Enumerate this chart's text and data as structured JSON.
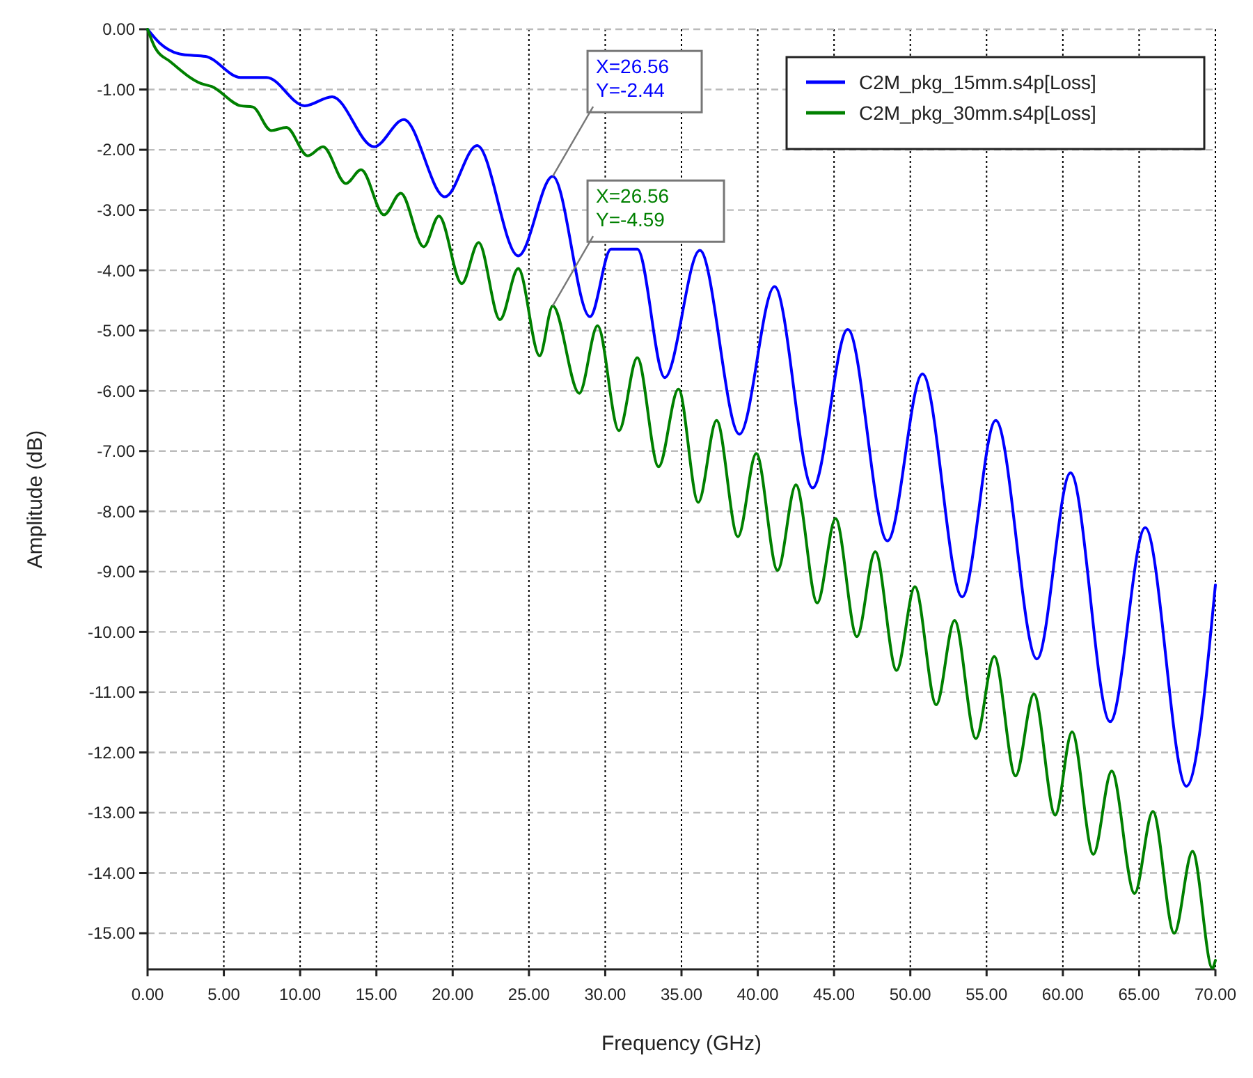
{
  "chart_data": {
    "type": "line",
    "xlabel": "Frequency (GHz)",
    "ylabel": "Amplitude (dB)",
    "xlim": [
      0,
      70
    ],
    "ylim": [
      -15.6,
      0
    ],
    "xticks": [
      {
        "value": 0,
        "label": "0.00"
      },
      {
        "value": 5,
        "label": "5.00"
      },
      {
        "value": 10,
        "label": "10.00"
      },
      {
        "value": 15,
        "label": "15.00"
      },
      {
        "value": 20,
        "label": "20.00"
      },
      {
        "value": 25,
        "label": "25.00"
      },
      {
        "value": 30,
        "label": "30.00"
      },
      {
        "value": 35,
        "label": "35.00"
      },
      {
        "value": 40,
        "label": "40.00"
      },
      {
        "value": 45,
        "label": "45.00"
      },
      {
        "value": 50,
        "label": "50.00"
      },
      {
        "value": 55,
        "label": "55.00"
      },
      {
        "value": 60,
        "label": "60.00"
      },
      {
        "value": 65,
        "label": "65.00"
      },
      {
        "value": 70,
        "label": "70.00"
      }
    ],
    "yticks": [
      {
        "value": 0,
        "label": "0.00"
      },
      {
        "value": -1,
        "label": "-1.00"
      },
      {
        "value": -2,
        "label": "-2.00"
      },
      {
        "value": -3,
        "label": "-3.00"
      },
      {
        "value": -4,
        "label": "-4.00"
      },
      {
        "value": -5,
        "label": "-5.00"
      },
      {
        "value": -6,
        "label": "-6.00"
      },
      {
        "value": -7,
        "label": "-7.00"
      },
      {
        "value": -8,
        "label": "-8.00"
      },
      {
        "value": -9,
        "label": "-9.00"
      },
      {
        "value": -10,
        "label": "-10.00"
      },
      {
        "value": -11,
        "label": "-11.00"
      },
      {
        "value": -12,
        "label": "-12.00"
      },
      {
        "value": -13,
        "label": "-13.00"
      },
      {
        "value": -14,
        "label": "-14.00"
      },
      {
        "value": -15,
        "label": "-15.00"
      }
    ],
    "grid": true,
    "legend": "top right",
    "marker": "none",
    "line_style": "solid",
    "series": [
      {
        "name": "C2M_pkg_15mm.s4p[Loss]",
        "color": "#0000ff",
        "x": [
          0,
          0.8,
          2.3,
          3.8,
          6.1,
          7.8,
          10.3,
          12.1,
          14.85,
          16.8,
          19.5,
          21.6,
          24.3,
          26.56,
          29.0,
          30.38,
          32.11,
          33.9,
          36.2,
          38.8,
          41.1,
          43.6,
          45.9,
          48.5,
          50.8,
          53.4,
          55.6,
          58.3,
          60.5,
          63.1,
          65.4,
          68.1,
          70
        ],
        "values": [
          0,
          -0.23,
          -0.42,
          -0.45,
          -0.8,
          -0.8,
          -1.27,
          -1.12,
          -1.95,
          -1.5,
          -2.78,
          -1.93,
          -3.76,
          -2.44,
          -4.77,
          -3.65,
          -3.65,
          -5.78,
          -3.67,
          -6.72,
          -4.27,
          -7.61,
          -4.98,
          -8.49,
          -5.72,
          -9.42,
          -6.49,
          -10.45,
          -7.36,
          -11.49,
          -8.27,
          -12.56,
          -9.22
        ]
      },
      {
        "name": "C2M_pkg_30mm.s4p[Loss]",
        "color": "#008000",
        "x": [
          0,
          0.5,
          1.5,
          3.5,
          4.2,
          6.1,
          6.9,
          8.1,
          9.1,
          10.5,
          11.5,
          13.0,
          14.0,
          15.5,
          16.6,
          18.1,
          19.1,
          20.6,
          21.7,
          23.1,
          24.3,
          25.7,
          26.56,
          28.3,
          29.5,
          30.9,
          32.1,
          33.5,
          34.8,
          36.1,
          37.3,
          38.7,
          39.9,
          41.3,
          42.5,
          43.9,
          45.1,
          46.5,
          47.7,
          49.1,
          50.3,
          51.7,
          52.9,
          54.3,
          55.5,
          56.9,
          58.1,
          59.5,
          60.6,
          62.0,
          63.2,
          64.7,
          65.9,
          67.3,
          68.5,
          69.8,
          70
        ],
        "values": [
          0,
          -0.31,
          -0.54,
          -0.9,
          -0.95,
          -1.27,
          -1.29,
          -1.68,
          -1.63,
          -2.1,
          -1.95,
          -2.56,
          -2.33,
          -3.08,
          -2.72,
          -3.61,
          -3.1,
          -4.22,
          -3.54,
          -4.82,
          -3.97,
          -5.42,
          -4.59,
          -6.04,
          -4.92,
          -6.66,
          -5.45,
          -7.26,
          -5.97,
          -7.85,
          -6.49,
          -8.42,
          -7.04,
          -8.98,
          -7.56,
          -9.52,
          -8.12,
          -10.08,
          -8.67,
          -10.64,
          -9.25,
          -11.21,
          -9.81,
          -11.77,
          -10.41,
          -12.39,
          -11.03,
          -13.04,
          -11.66,
          -13.69,
          -12.31,
          -14.34,
          -12.98,
          -15.0,
          -13.64,
          -15.58,
          -15.45
        ]
      }
    ],
    "annotations": [
      {
        "text": "X=26.56\nY=-2.44",
        "x": 26.56,
        "y": -2.44
      },
      {
        "text": "X=26.56\nY=-4.59",
        "x": 26.56,
        "y": -4.59
      }
    ]
  }
}
